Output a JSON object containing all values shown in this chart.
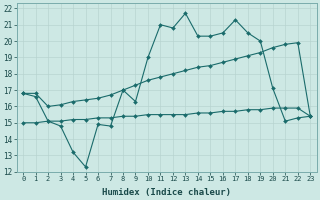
{
  "xlabel": "Humidex (Indice chaleur)",
  "xlim": [
    -0.5,
    23.5
  ],
  "ylim": [
    12,
    22.3
  ],
  "xticks": [
    0,
    1,
    2,
    3,
    4,
    5,
    6,
    7,
    8,
    9,
    10,
    11,
    12,
    13,
    14,
    15,
    16,
    17,
    18,
    19,
    20,
    21,
    22,
    23
  ],
  "yticks": [
    12,
    13,
    14,
    15,
    16,
    17,
    18,
    19,
    20,
    21,
    22
  ],
  "bg_color": "#cde8e4",
  "grid_color": "#b8d4d0",
  "line_color": "#1a6b6b",
  "line1_y": [
    16.8,
    16.6,
    15.1,
    14.8,
    13.2,
    12.3,
    14.9,
    14.8,
    17.0,
    16.3,
    19.0,
    21.0,
    20.8,
    21.7,
    20.3,
    20.3,
    20.5,
    21.3,
    20.5,
    20.0,
    17.1,
    15.1,
    15.3,
    15.4
  ],
  "line2_y": [
    15.0,
    15.0,
    15.1,
    15.1,
    15.2,
    15.2,
    15.3,
    15.3,
    15.4,
    15.4,
    15.5,
    15.5,
    15.5,
    15.5,
    15.6,
    15.6,
    15.7,
    15.7,
    15.8,
    15.8,
    15.9,
    15.9,
    15.9,
    15.4
  ],
  "line3_y": [
    16.8,
    16.8,
    16.0,
    16.1,
    16.3,
    16.4,
    16.5,
    16.7,
    17.0,
    17.3,
    17.6,
    17.8,
    18.0,
    18.2,
    18.4,
    18.5,
    18.7,
    18.9,
    19.1,
    19.3,
    19.6,
    19.8,
    19.9,
    15.4
  ]
}
